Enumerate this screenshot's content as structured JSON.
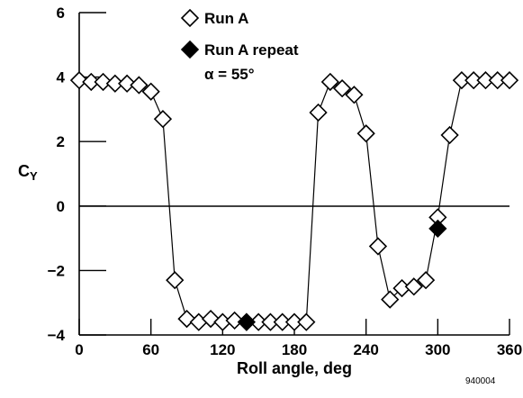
{
  "chart_data": {
    "type": "scatter",
    "xlabel": "Roll angle, deg",
    "ylabel_main": "C",
    "ylabel_sub": "Y",
    "xlim": [
      0,
      360
    ],
    "ylim": [
      -4,
      6
    ],
    "x_ticks": [
      0,
      60,
      120,
      180,
      240,
      300,
      360
    ],
    "y_ticks": [
      6,
      4,
      2,
      0,
      -2,
      -4
    ],
    "x_tick_labels": [
      "0",
      "60",
      "120",
      "180",
      "240",
      "300",
      "360"
    ],
    "y_tick_labels": [
      "6",
      "4",
      "2",
      "0",
      "−2",
      "−4"
    ],
    "zero_line": 0,
    "grid": false,
    "legend_position": "top-center",
    "series": [
      {
        "name": "Run A",
        "marker": "open-diamond",
        "connected": true,
        "x": [
          0,
          10,
          20,
          30,
          40,
          50,
          60,
          70,
          80,
          90,
          100,
          110,
          120,
          130,
          140,
          150,
          160,
          170,
          180,
          190,
          200,
          210,
          220,
          230,
          240,
          250,
          260,
          270,
          280,
          290,
          300,
          310,
          320,
          330,
          340,
          350,
          360
        ],
        "y": [
          3.9,
          3.85,
          3.85,
          3.8,
          3.8,
          3.75,
          3.55,
          2.7,
          -2.3,
          -3.5,
          -3.6,
          -3.5,
          -3.6,
          -3.55,
          -3.6,
          -3.6,
          -3.6,
          -3.6,
          -3.6,
          -3.6,
          2.9,
          3.85,
          3.65,
          3.45,
          2.25,
          -1.25,
          -2.9,
          -2.55,
          -2.5,
          -2.3,
          -0.35,
          2.2,
          3.9,
          3.9,
          3.9,
          3.9,
          3.9
        ]
      },
      {
        "name": "Run A repeat",
        "marker": "filled-diamond",
        "connected": false,
        "x": [
          140,
          300
        ],
        "y": [
          -3.6,
          -0.7
        ]
      }
    ],
    "annotation": "α = 55°"
  },
  "figure_number": "940004"
}
